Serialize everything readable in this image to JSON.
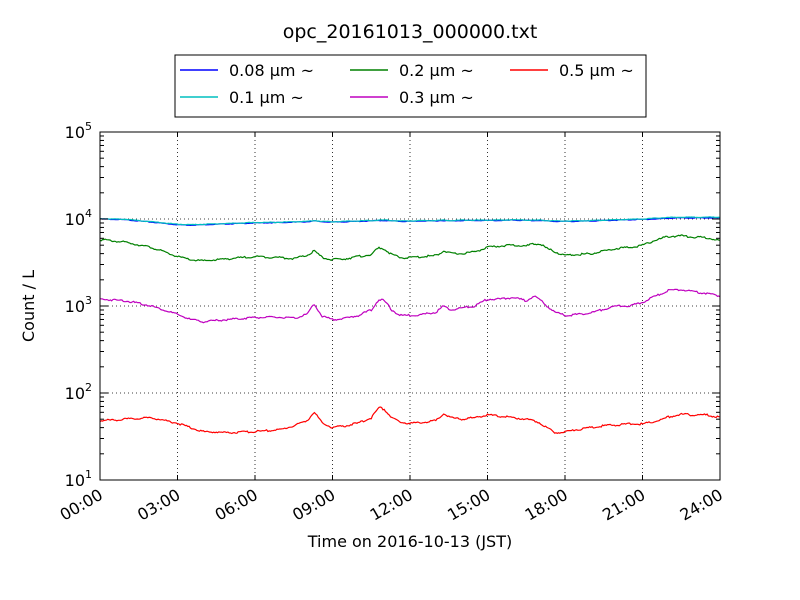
{
  "chart_data": {
    "type": "line",
    "title": "opc_20161013_000000.txt",
    "xlabel": "Time on 2016-10-13 (JST)",
    "ylabel": "Count / L",
    "yscale": "log",
    "ylim": [
      10,
      100000
    ],
    "xlim": [
      "00:00",
      "24:00"
    ],
    "x_unit": "hours",
    "xticks": [
      "00:00",
      "03:00",
      "06:00",
      "09:00",
      "12:00",
      "15:00",
      "18:00",
      "21:00",
      "24:00"
    ],
    "yticks": [
      {
        "value": 10,
        "base": "10",
        "exp": "1"
      },
      {
        "value": 100,
        "base": "10",
        "exp": "2"
      },
      {
        "value": 1000,
        "base": "10",
        "exp": "3"
      },
      {
        "value": 10000,
        "base": "10",
        "exp": "4"
      },
      {
        "value": 100000,
        "base": "10",
        "exp": "5"
      }
    ],
    "grid": true,
    "legend_position": "top",
    "x": [
      0,
      1,
      2,
      3,
      3.5,
      4,
      5,
      6,
      7,
      7.5,
      8,
      8.3,
      8.6,
      9,
      9.5,
      10,
      10.5,
      10.8,
      11,
      11.3,
      11.6,
      12,
      12.5,
      13,
      13.3,
      13.6,
      14,
      14.5,
      15,
      15.5,
      16,
      16.5,
      16.8,
      17,
      17.3,
      17.6,
      18,
      18.5,
      19,
      19.5,
      20,
      20.5,
      21,
      21.5,
      22,
      22.5,
      23,
      23.5,
      24
    ],
    "series": [
      {
        "name": "0.08 μm ~",
        "color": "#0000ff",
        "values": [
          10000,
          9800,
          9200,
          8600,
          8500,
          8600,
          8800,
          9000,
          9100,
          9200,
          9300,
          9500,
          9300,
          9200,
          9300,
          9400,
          9500,
          9600,
          9600,
          9500,
          9400,
          9400,
          9500,
          9500,
          9600,
          9500,
          9600,
          9600,
          9600,
          9600,
          9700,
          9600,
          9600,
          9600,
          9500,
          9400,
          9400,
          9400,
          9500,
          9600,
          9700,
          9800,
          9900,
          10000,
          10200,
          10300,
          10300,
          10300,
          10300
        ]
      },
      {
        "name": "0.1 μm ~",
        "color": "#00bfbf",
        "values": [
          10100,
          9900,
          9300,
          8700,
          8600,
          8700,
          8900,
          9100,
          9200,
          9300,
          9400,
          9600,
          9400,
          9300,
          9400,
          9500,
          9600,
          9700,
          9700,
          9600,
          9500,
          9500,
          9600,
          9600,
          9700,
          9600,
          9700,
          9700,
          9700,
          9700,
          9800,
          9700,
          9700,
          9700,
          9600,
          9500,
          9500,
          9500,
          9600,
          9700,
          9800,
          9900,
          10000,
          10200,
          10400,
          10500,
          10500,
          10500,
          10500
        ]
      },
      {
        "name": "0.2 μm ~",
        "color": "#008000",
        "values": [
          5800,
          5400,
          4700,
          3700,
          3400,
          3300,
          3500,
          3700,
          3600,
          3500,
          3800,
          4300,
          3600,
          3400,
          3500,
          3700,
          3900,
          4700,
          4500,
          3900,
          3600,
          3600,
          3700,
          3800,
          4300,
          4000,
          4000,
          4200,
          4700,
          4900,
          5000,
          4900,
          5200,
          5200,
          4600,
          4200,
          3800,
          3900,
          4000,
          4300,
          4600,
          4700,
          5000,
          5700,
          6300,
          6400,
          6200,
          6100,
          5600
        ]
      },
      {
        "name": "0.3 μm ~",
        "color": "#bf00bf",
        "values": [
          1200,
          1150,
          1000,
          800,
          700,
          660,
          700,
          740,
          740,
          720,
          800,
          1050,
          760,
          700,
          720,
          780,
          900,
          1200,
          1150,
          900,
          780,
          780,
          800,
          850,
          1000,
          900,
          950,
          1000,
          1200,
          1200,
          1250,
          1150,
          1300,
          1200,
          1000,
          850,
          780,
          800,
          830,
          920,
          1000,
          1000,
          1100,
          1300,
          1500,
          1550,
          1450,
          1400,
          1300
        ]
      },
      {
        "name": "0.5 μm ~",
        "color": "#ff0000",
        "values": [
          48,
          50,
          52,
          45,
          40,
          36,
          35,
          36,
          38,
          42,
          48,
          60,
          45,
          40,
          42,
          45,
          52,
          68,
          65,
          52,
          46,
          45,
          46,
          48,
          58,
          52,
          50,
          52,
          56,
          54,
          52,
          50,
          48,
          46,
          40,
          35,
          36,
          38,
          40,
          42,
          43,
          44,
          44,
          47,
          53,
          57,
          56,
          56,
          52
        ]
      }
    ]
  }
}
